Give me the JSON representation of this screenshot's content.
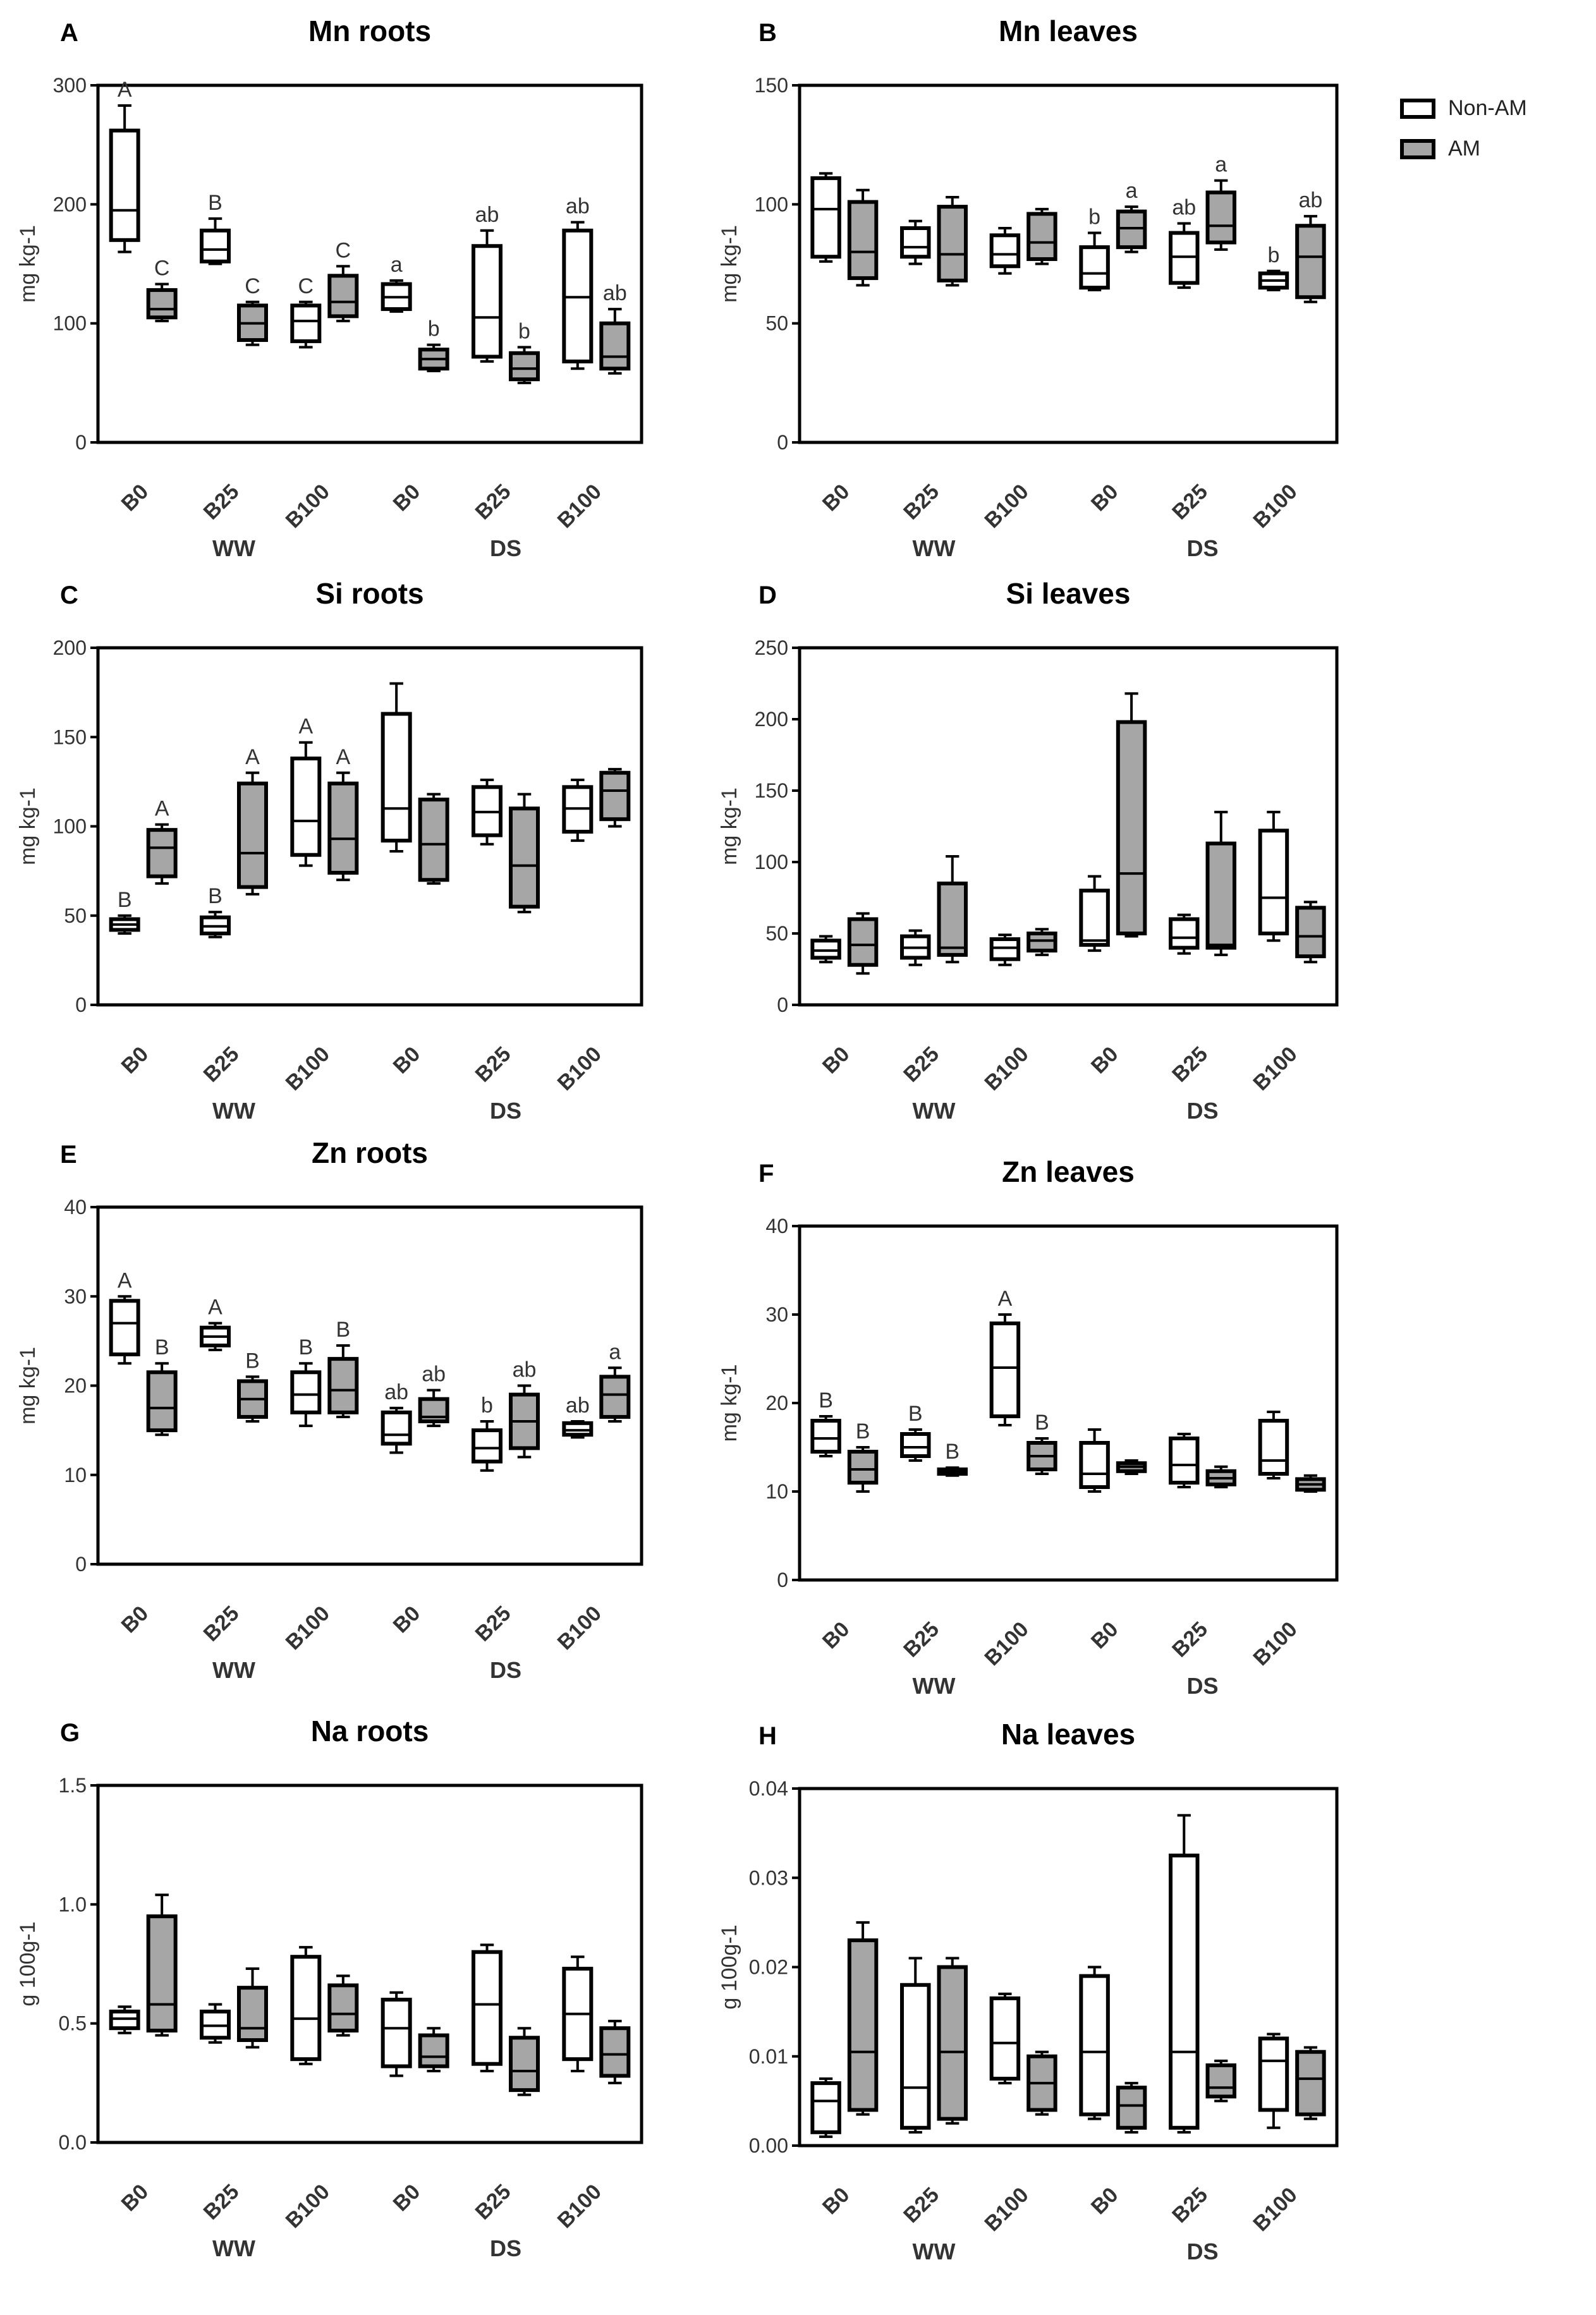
{
  "colors": {
    "non_am_fill": "#ffffff",
    "am_fill": "#a6a6a6",
    "ink": "#000000",
    "axis_text": "#333333"
  },
  "legend": {
    "non_am": "Non-AM",
    "am": "AM"
  },
  "chart_data": [
    {
      "panel": "A",
      "title": "Mn roots",
      "type": "box",
      "ylabel": "mg kg-1",
      "ylim": [
        0,
        300
      ],
      "yticks": [
        0,
        100,
        200,
        300
      ],
      "categories": [
        "B0",
        "B25",
        "B100",
        "B0",
        "B25",
        "B100"
      ],
      "groups": [
        "WW",
        "DS"
      ],
      "series": [
        {
          "name": "Non-AM",
          "boxes": [
            [
              160,
              170,
              195,
              262,
              283
            ],
            [
              150,
              152,
              162,
              178,
              188
            ],
            [
              80,
              85,
              102,
              115,
              118
            ],
            [
              110,
              112,
              122,
              133,
              136
            ],
            [
              68,
              72,
              105,
              165,
              178
            ],
            [
              62,
              68,
              122,
              178,
              185
            ]
          ],
          "letters": [
            "A",
            "B",
            "C",
            "a",
            "ab",
            "ab"
          ]
        },
        {
          "name": "AM",
          "boxes": [
            [
              102,
              105,
              112,
              128,
              133
            ],
            [
              82,
              86,
              100,
              115,
              118
            ],
            [
              102,
              106,
              118,
              140,
              148
            ],
            [
              60,
              62,
              70,
              78,
              82
            ],
            [
              50,
              53,
              62,
              75,
              80
            ],
            [
              58,
              62,
              72,
              100,
              112
            ]
          ],
          "letters": [
            "C",
            "C",
            "C",
            "b",
            "b",
            "ab"
          ]
        }
      ]
    },
    {
      "panel": "B",
      "title": "Mn leaves",
      "type": "box",
      "ylabel": "mg kg-1",
      "ylim": [
        0,
        150
      ],
      "yticks": [
        0,
        50,
        100,
        150
      ],
      "categories": [
        "B0",
        "B25",
        "B100",
        "B0",
        "B25",
        "B100"
      ],
      "groups": [
        "WW",
        "DS"
      ],
      "series": [
        {
          "name": "Non-AM",
          "boxes": [
            [
              76,
              78,
              98,
              111,
              113
            ],
            [
              75,
              78,
              82,
              90,
              93
            ],
            [
              71,
              74,
              79,
              87,
              90
            ],
            [
              64,
              65,
              71,
              82,
              88
            ],
            [
              65,
              67,
              78,
              88,
              92
            ],
            [
              64,
              65,
              68,
              71,
              72
            ]
          ],
          "letters": [
            "",
            "",
            "",
            "b",
            "ab",
            "b"
          ]
        },
        {
          "name": "AM",
          "boxes": [
            [
              66,
              69,
              80,
              101,
              106
            ],
            [
              66,
              68,
              79,
              99,
              103
            ],
            [
              75,
              77,
              84,
              96,
              98
            ],
            [
              80,
              82,
              90,
              97,
              99
            ],
            [
              81,
              84,
              91,
              105,
              110
            ],
            [
              59,
              61,
              78,
              91,
              95
            ]
          ],
          "letters": [
            "",
            "",
            "",
            "a",
            "a",
            "ab"
          ]
        }
      ]
    },
    {
      "panel": "C",
      "title": "Si roots",
      "type": "box",
      "ylabel": "mg kg-1",
      "ylim": [
        0,
        200
      ],
      "yticks": [
        0,
        50,
        100,
        150,
        200
      ],
      "categories": [
        "B0",
        "B25",
        "B100",
        "B0",
        "B25",
        "B100"
      ],
      "groups": [
        "WW",
        "DS"
      ],
      "series": [
        {
          "name": "Non-AM",
          "boxes": [
            [
              40,
              42,
              45,
              48,
              50
            ],
            [
              38,
              40,
              44,
              49,
              52
            ],
            [
              78,
              84,
              103,
              138,
              147
            ],
            [
              86,
              92,
              110,
              163,
              180
            ],
            [
              90,
              95,
              108,
              122,
              126
            ],
            [
              92,
              97,
              110,
              122,
              126
            ]
          ],
          "letters": [
            "B",
            "B",
            "A",
            "",
            "",
            ""
          ]
        },
        {
          "name": "AM",
          "boxes": [
            [
              68,
              72,
              88,
              98,
              101
            ],
            [
              62,
              66,
              85,
              124,
              130
            ],
            [
              70,
              74,
              93,
              124,
              130
            ],
            [
              68,
              70,
              90,
              115,
              118
            ],
            [
              52,
              55,
              78,
              110,
              118
            ],
            [
              100,
              104,
              120,
              130,
              132
            ]
          ],
          "letters": [
            "A",
            "A",
            "A",
            "",
            "",
            ""
          ]
        }
      ]
    },
    {
      "panel": "D",
      "title": "Si leaves",
      "type": "box",
      "ylabel": "mg kg-1",
      "ylim": [
        0,
        250
      ],
      "yticks": [
        0,
        50,
        100,
        150,
        200,
        250
      ],
      "categories": [
        "B0",
        "B25",
        "B100",
        "B0",
        "B25",
        "B100"
      ],
      "groups": [
        "WW",
        "DS"
      ],
      "series": [
        {
          "name": "Non-AM",
          "boxes": [
            [
              30,
              33,
              38,
              45,
              48
            ],
            [
              28,
              33,
              40,
              48,
              52
            ],
            [
              28,
              32,
              40,
              46,
              49
            ],
            [
              38,
              42,
              45,
              80,
              90
            ],
            [
              36,
              40,
              47,
              60,
              63
            ],
            [
              45,
              50,
              75,
              122,
              135
            ]
          ],
          "letters": [
            "",
            "",
            "",
            "",
            "",
            ""
          ]
        },
        {
          "name": "AM",
          "boxes": [
            [
              22,
              28,
              42,
              60,
              64
            ],
            [
              30,
              35,
              40,
              85,
              104
            ],
            [
              35,
              38,
              45,
              50,
              53
            ],
            [
              48,
              50,
              92,
              198,
              218
            ],
            [
              35,
              40,
              42,
              113,
              135
            ],
            [
              30,
              34,
              48,
              68,
              72
            ]
          ],
          "letters": [
            "",
            "",
            "",
            "",
            "",
            ""
          ]
        }
      ]
    },
    {
      "panel": "E",
      "title": "Zn roots",
      "type": "box",
      "ylabel": "mg kg-1",
      "ylim": [
        0,
        40
      ],
      "yticks": [
        0,
        10,
        20,
        30,
        40
      ],
      "categories": [
        "B0",
        "B25",
        "B100",
        "B0",
        "B25",
        "B100"
      ],
      "groups": [
        "WW",
        "DS"
      ],
      "series": [
        {
          "name": "Non-AM",
          "boxes": [
            [
              22.5,
              23.5,
              27,
              29.5,
              30
            ],
            [
              24,
              24.5,
              25.5,
              26.5,
              27
            ],
            [
              15.5,
              17,
              19,
              21.5,
              22.5
            ],
            [
              12.5,
              13.5,
              14.5,
              17,
              17.5
            ],
            [
              10.5,
              11.5,
              13,
              15,
              16
            ],
            [
              14.2,
              14.5,
              15,
              15.8,
              16
            ]
          ],
          "letters": [
            "A",
            "A",
            "B",
            "ab",
            "b",
            "ab"
          ]
        },
        {
          "name": "AM",
          "boxes": [
            [
              14.5,
              15,
              17.5,
              21.5,
              22.5
            ],
            [
              16,
              16.5,
              18.5,
              20.5,
              21
            ],
            [
              16.5,
              17,
              19.5,
              23,
              24.5
            ],
            [
              15.5,
              16,
              16.5,
              18.5,
              19.5
            ],
            [
              12,
              13,
              16,
              19,
              20
            ],
            [
              16,
              16.5,
              19,
              21,
              22
            ]
          ],
          "letters": [
            "B",
            "B",
            "B",
            "ab",
            "ab",
            "a"
          ]
        }
      ]
    },
    {
      "panel": "F",
      "title": "Zn leaves",
      "type": "box",
      "ylabel": "mg kg-1",
      "ylim": [
        0,
        40
      ],
      "yticks": [
        0,
        10,
        20,
        30,
        40
      ],
      "categories": [
        "B0",
        "B25",
        "B100",
        "B0",
        "B25",
        "B100"
      ],
      "groups": [
        "WW",
        "DS"
      ],
      "series": [
        {
          "name": "Non-AM",
          "boxes": [
            [
              14,
              14.5,
              16,
              18,
              18.5
            ],
            [
              13.5,
              14,
              15,
              16.5,
              17
            ],
            [
              17.5,
              18.5,
              24,
              29,
              30
            ],
            [
              10,
              10.5,
              12,
              15.5,
              17
            ],
            [
              10.5,
              11,
              13,
              16,
              16.5
            ],
            [
              11.5,
              12,
              13.5,
              18,
              19
            ]
          ],
          "letters": [
            "B",
            "B",
            "A",
            "",
            "",
            ""
          ]
        },
        {
          "name": "AM",
          "boxes": [
            [
              10,
              11,
              12.5,
              14.5,
              15
            ],
            [
              11.8,
              12,
              12.3,
              12.5,
              12.7
            ],
            [
              12,
              12.5,
              14,
              15.5,
              16
            ],
            [
              12,
              12.3,
              12.8,
              13.2,
              13.5
            ],
            [
              10.5,
              10.8,
              11.5,
              12.3,
              12.8
            ],
            [
              10,
              10.2,
              10.8,
              11.4,
              11.8
            ]
          ],
          "letters": [
            "B",
            "B",
            "B",
            "",
            "",
            ""
          ]
        }
      ]
    },
    {
      "panel": "G",
      "title": "Na roots",
      "type": "box",
      "ylabel": "g 100g-1",
      "ylim": [
        0,
        1.5
      ],
      "yticks": [
        "0.0",
        "0.5",
        "1.0",
        "1.5"
      ],
      "categories": [
        "B0",
        "B25",
        "B100",
        "B0",
        "B25",
        "B100"
      ],
      "groups": [
        "WW",
        "DS"
      ],
      "series": [
        {
          "name": "Non-AM",
          "boxes": [
            [
              0.46,
              0.48,
              0.52,
              0.55,
              0.57
            ],
            [
              0.42,
              0.44,
              0.49,
              0.55,
              0.58
            ],
            [
              0.33,
              0.35,
              0.52,
              0.78,
              0.82
            ],
            [
              0.28,
              0.32,
              0.48,
              0.6,
              0.63
            ],
            [
              0.3,
              0.33,
              0.58,
              0.8,
              0.83
            ],
            [
              0.3,
              0.35,
              0.54,
              0.73,
              0.78
            ]
          ],
          "letters": [
            "",
            "",
            "",
            "",
            "",
            ""
          ]
        },
        {
          "name": "AM",
          "boxes": [
            [
              0.45,
              0.47,
              0.58,
              0.95,
              1.04
            ],
            [
              0.4,
              0.43,
              0.48,
              0.65,
              0.73
            ],
            [
              0.45,
              0.47,
              0.54,
              0.66,
              0.7
            ],
            [
              0.3,
              0.32,
              0.36,
              0.45,
              0.48
            ],
            [
              0.2,
              0.22,
              0.3,
              0.44,
              0.48
            ],
            [
              0.25,
              0.28,
              0.37,
              0.48,
              0.51
            ]
          ],
          "letters": [
            "",
            "",
            "",
            "",
            "",
            ""
          ]
        }
      ]
    },
    {
      "panel": "H",
      "title": "Na leaves",
      "type": "box",
      "ylabel": "g 100g-1",
      "ylim": [
        0,
        0.04
      ],
      "yticks": [
        "0.00",
        "0.01",
        "0.02",
        "0.03",
        "0.04"
      ],
      "categories": [
        "B0",
        "B25",
        "B100",
        "B0",
        "B25",
        "B100"
      ],
      "groups": [
        "WW",
        "DS"
      ],
      "series": [
        {
          "name": "Non-AM",
          "boxes": [
            [
              0.001,
              0.0015,
              0.005,
              0.007,
              0.0075
            ],
            [
              0.0015,
              0.002,
              0.0065,
              0.018,
              0.021
            ],
            [
              0.007,
              0.0075,
              0.0115,
              0.0165,
              0.017
            ],
            [
              0.003,
              0.0035,
              0.0105,
              0.019,
              0.02
            ],
            [
              0.0015,
              0.002,
              0.0105,
              0.0325,
              0.037
            ],
            [
              0.002,
              0.004,
              0.0095,
              0.012,
              0.0125
            ]
          ],
          "letters": [
            "",
            "",
            "",
            "",
            "",
            ""
          ]
        },
        {
          "name": "AM",
          "boxes": [
            [
              0.0035,
              0.004,
              0.0105,
              0.023,
              0.025
            ],
            [
              0.0025,
              0.003,
              0.0105,
              0.02,
              0.021
            ],
            [
              0.0035,
              0.004,
              0.007,
              0.01,
              0.0105
            ],
            [
              0.0015,
              0.002,
              0.0045,
              0.0065,
              0.007
            ],
            [
              0.005,
              0.0055,
              0.0065,
              0.009,
              0.0095
            ],
            [
              0.003,
              0.0035,
              0.0075,
              0.0105,
              0.011
            ]
          ],
          "letters": [
            "",
            "",
            "",
            "",
            "",
            ""
          ]
        }
      ]
    }
  ]
}
